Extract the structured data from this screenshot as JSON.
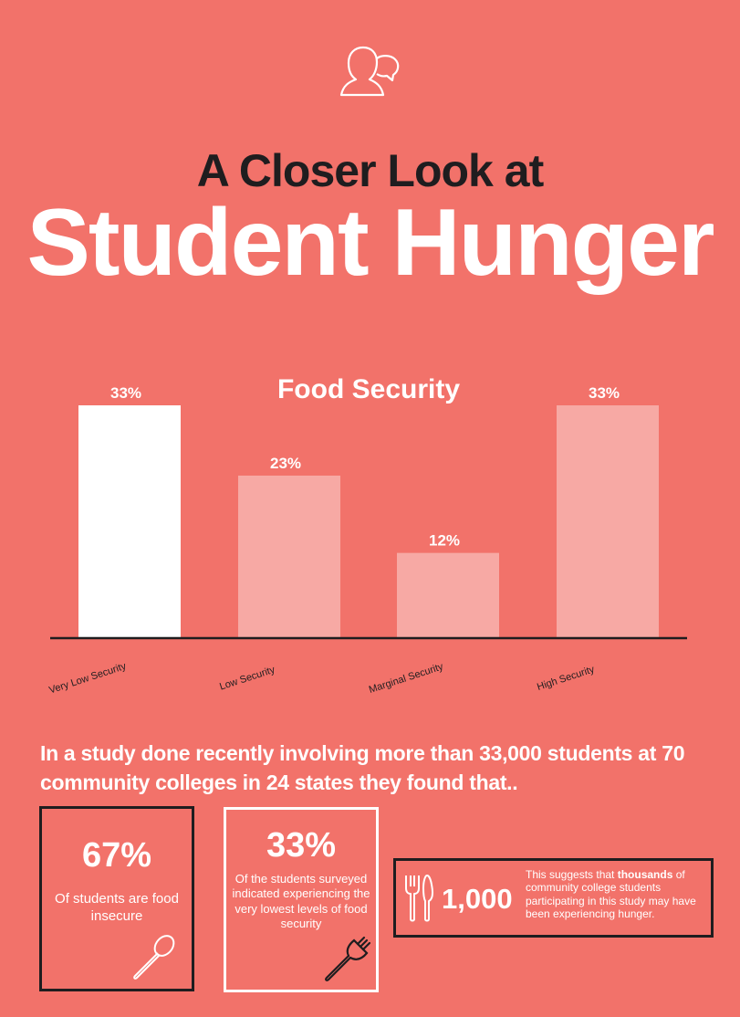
{
  "header": {
    "subtitle": "A Closer Look at",
    "title": "Student Hunger"
  },
  "chart_data": {
    "type": "bar",
    "title": "Food Security",
    "categories": [
      "Very Low Security",
      "Low Security",
      "Marginal Security",
      "High Security"
    ],
    "values": [
      33,
      23,
      12,
      33
    ],
    "value_labels": [
      "33%",
      "23%",
      "12%",
      "33%"
    ],
    "xlabel": "",
    "ylabel": "",
    "ylim": [
      0,
      33
    ],
    "grid": false,
    "colors": [
      "#ffffff",
      "#f7a9a4",
      "#f7a9a4",
      "#f7a9a4"
    ]
  },
  "intro": {
    "text": "In a study done recently involving more than 33,000 students at 70 community colleges in 24 states they found that.."
  },
  "stats": {
    "box1": {
      "value": "67%",
      "text": "Of students are food insecure"
    },
    "box2": {
      "value": "33%",
      "text": "Of the students surveyed indicated experiencing the very lowest levels of food security"
    },
    "box3": {
      "value": "1,000",
      "text_before": "This suggests that ",
      "text_bold": "thousands",
      "text_after": " of community college students participating in this study may have been experiencing hunger."
    }
  },
  "colors": {
    "background": "#f2726a",
    "dark": "#1f1d1f",
    "light_bar": "#f7a9a4"
  },
  "icons": [
    "person-speech-icon",
    "spoon-icon",
    "fork-icon",
    "utensils-icon"
  ]
}
